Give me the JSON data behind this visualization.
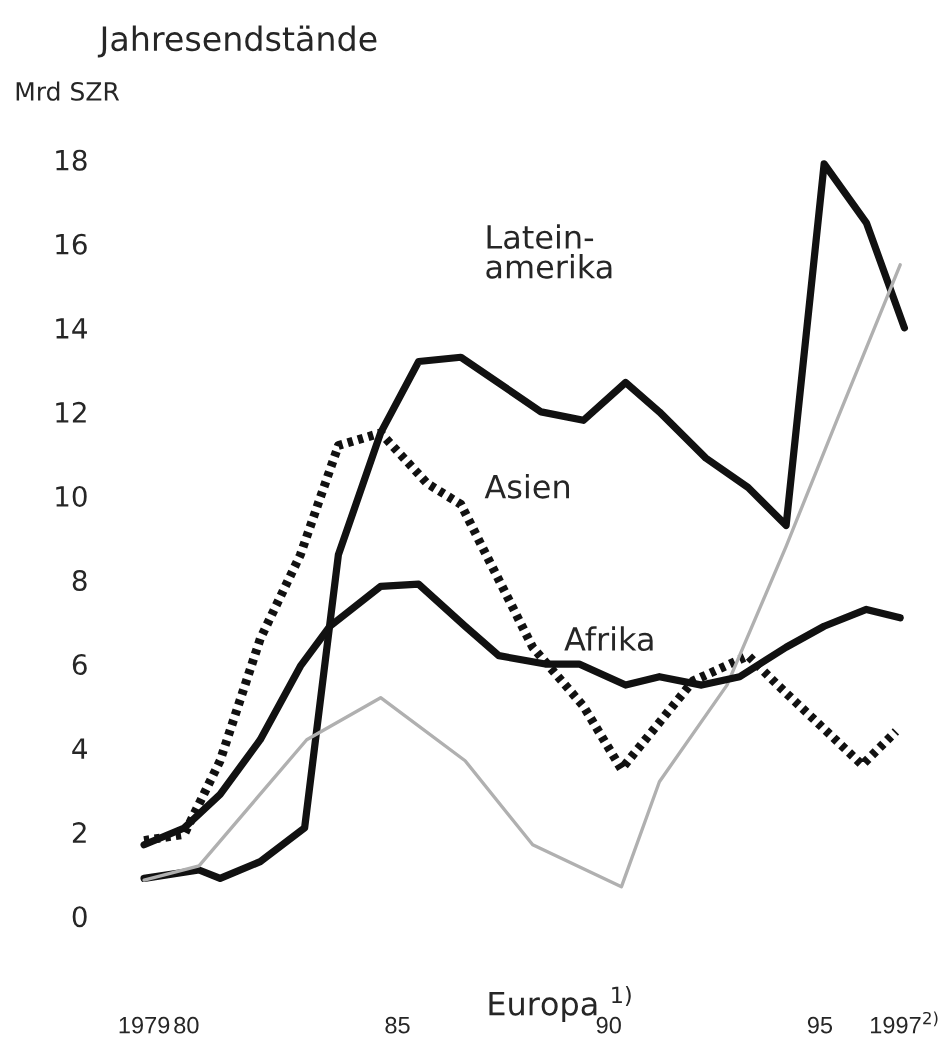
{
  "chart_data": {
    "type": "line",
    "title": "Jahresendstände",
    "ylabel": "Mrd SZR",
    "xlim": [
      1979,
      1997
    ],
    "ylim": [
      0,
      18
    ],
    "xticks": [
      {
        "value": 1979,
        "label": "1979"
      },
      {
        "value": 1980,
        "label": "80"
      },
      {
        "value": 1985,
        "label": "85"
      },
      {
        "value": 1990,
        "label": "90"
      },
      {
        "value": 1995,
        "label": "95"
      },
      {
        "value": 1997,
        "label": "1997$^{2)}$"
      }
    ],
    "yticks": [
      0,
      2,
      4,
      6,
      8,
      10,
      12,
      14,
      16,
      18
    ],
    "grid": false,
    "legend": false,
    "series": [
      {
        "color": "#111111",
        "line_style": "solid",
        "x": [
          1979,
          1980.3,
          1980.8,
          1981.75,
          1982.8,
          1983.6,
          1984.6,
          1985.5,
          1986.5,
          1988.4,
          1989.4,
          1990.4,
          1991.2,
          1992.3,
          1993.3,
          1994.2,
          1995.1,
          1996.1,
          1997
        ],
        "values": [
          0.9,
          1.1,
          0.9,
          1.3,
          2.1,
          8.6,
          11.5,
          13.2,
          13.3,
          12.0,
          11.8,
          12.7,
          12.0,
          10.9,
          10.2,
          9.3,
          17.9,
          16.5,
          14.0
        ]
      },
      {
        "color": "#111111",
        "line_style": "dotted",
        "x": [
          1979,
          1979.95,
          1980.8,
          1981.75,
          1982.7,
          1983.6,
          1984.6,
          1985.7,
          1986.5,
          1987.0,
          1988.2,
          1989.4,
          1990.3,
          1992.0,
          1993.3,
          1994.0,
          1996.0,
          1996.8
        ],
        "values": [
          1.8,
          1.95,
          3.7,
          6.6,
          8.6,
          11.2,
          11.5,
          10.3,
          9.8,
          8.8,
          6.4,
          5.0,
          3.5,
          5.6,
          6.2,
          5.5,
          3.6,
          4.4
        ]
      },
      {
        "color": "#b0b0b0",
        "line_style": "solid",
        "x": [
          1979,
          1980.3,
          1982.85,
          1984.6,
          1986.6,
          1988.2,
          1990.3,
          1991.2,
          1992.8,
          1994.2,
          1995.4,
          1996.9
        ],
        "values": [
          0.86,
          1.2,
          4.2,
          5.2,
          3.7,
          1.7,
          0.7,
          3.2,
          5.5,
          8.8,
          11.8,
          15.5
        ]
      },
      {
        "color": "#111111",
        "line_style": "solid",
        "x": [
          1979,
          1979.95,
          1980.8,
          1981.75,
          1982.7,
          1983.4,
          1984.6,
          1985.5,
          1986.6,
          1987.4,
          1988.5,
          1989.3,
          1990.4,
          1991.2,
          1992.2,
          1993.1,
          1994.2,
          1995.1,
          1996.1,
          1996.9
        ],
        "values": [
          1.7,
          2.1,
          2.9,
          4.2,
          5.95,
          6.9,
          7.85,
          7.9,
          6.9,
          6.2,
          6.0,
          6.0,
          5.5,
          5.7,
          5.5,
          5.7,
          6.4,
          6.9,
          7.3,
          7.1
        ]
      }
    ],
    "annotations": [
      "Latein-\namerika",
      "Asien",
      "Afrika",
      "Europa $^{1)}$"
    ]
  }
}
